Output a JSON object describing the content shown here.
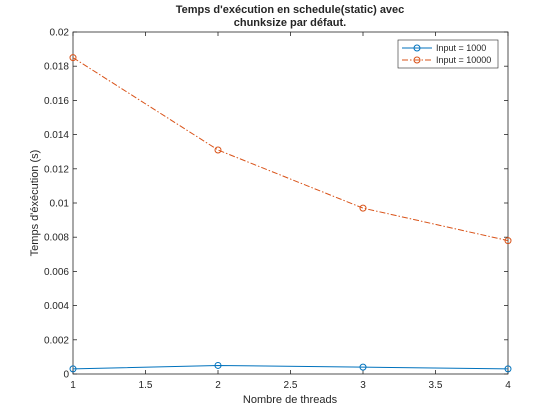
{
  "chart_data": {
    "type": "line",
    "title_lines": [
      "Temps d'exécution en schedule(static) avec",
      "chunksize par défaut."
    ],
    "xlabel": "Nombre de threads",
    "ylabel": "Temps d'éxécution (s)",
    "xlim": [
      1,
      4
    ],
    "ylim": [
      0,
      0.02
    ],
    "xticks": [
      "1",
      "1.5",
      "2",
      "2.5",
      "3",
      "3.5",
      "4"
    ],
    "yticks": [
      "0",
      "0.002",
      "0.004",
      "0.006",
      "0.008",
      "0.01",
      "0.012",
      "0.014",
      "0.016",
      "0.018",
      "0.02"
    ],
    "x": [
      1,
      2,
      3,
      4
    ],
    "series": [
      {
        "name": "Input = 1000",
        "values": [
          0.0003,
          0.0005,
          0.0004,
          0.0003
        ],
        "color": "#0072BD",
        "line_style": "solid",
        "marker": "circle"
      },
      {
        "name": "Input = 10000",
        "values": [
          0.0185,
          0.0131,
          0.0097,
          0.0078
        ],
        "color": "#D95319",
        "line_style": "dash-dot",
        "marker": "circle"
      }
    ],
    "legend_position": "top-right",
    "grid": false
  }
}
